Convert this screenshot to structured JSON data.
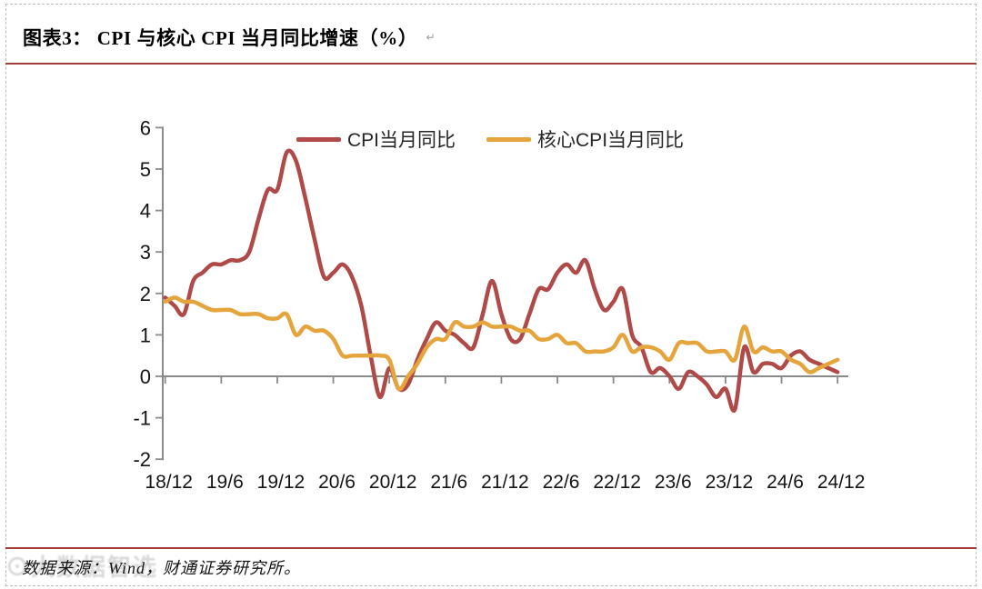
{
  "header": {
    "title": "图表3：  CPI 与核心 CPI 当月同比增速（%）",
    "paragraph_mark": "↵"
  },
  "footer": {
    "source_note": "数据来源：Wind，财通证券研究所。",
    "watermark": "⊙大数据智选"
  },
  "colors": {
    "cpi_line": "#B04A49",
    "core_cpi_line": "#E5A43C",
    "rule_red": "#A43C3A",
    "axis_gray": "#8A8A8A",
    "label_black": "#141414"
  },
  "chart_data": {
    "type": "line",
    "title": "CPI 与核心 CPI 当月同比增速（%）",
    "ylim": [
      -2,
      6
    ],
    "y_ticks": [
      6,
      5,
      4,
      3,
      2,
      1,
      0,
      -1,
      -2
    ],
    "x_tick_labels": [
      "18/12",
      "19/6",
      "19/12",
      "20/6",
      "20/12",
      "21/6",
      "21/12",
      "22/6",
      "22/12",
      "23/6",
      "23/12",
      "24/6",
      "24/12"
    ],
    "grid": "off",
    "legend_position": "top",
    "months": [
      "2018/12",
      "2019/1",
      "2019/2",
      "2019/3",
      "2019/4",
      "2019/5",
      "2019/6",
      "2019/7",
      "2019/8",
      "2019/9",
      "2019/10",
      "2019/11",
      "2019/12",
      "2020/1",
      "2020/2",
      "2020/3",
      "2020/4",
      "2020/5",
      "2020/6",
      "2020/7",
      "2020/8",
      "2020/9",
      "2020/10",
      "2020/11",
      "2020/12",
      "2021/1",
      "2021/2",
      "2021/3",
      "2021/4",
      "2021/5",
      "2021/6",
      "2021/7",
      "2021/8",
      "2021/9",
      "2021/10",
      "2021/11",
      "2021/12",
      "2022/1",
      "2022/2",
      "2022/3",
      "2022/4",
      "2022/5",
      "2022/6",
      "2022/7",
      "2022/8",
      "2022/9",
      "2022/10",
      "2022/11",
      "2022/12",
      "2023/1",
      "2023/2",
      "2023/3",
      "2023/4",
      "2023/5",
      "2023/6",
      "2023/7",
      "2023/8",
      "2023/9",
      "2023/10",
      "2023/11",
      "2023/12",
      "2024/1",
      "2024/2",
      "2024/3",
      "2024/4",
      "2024/5",
      "2024/6",
      "2024/7",
      "2024/8",
      "2024/9",
      "2024/10",
      "2024/11",
      "2024/12"
    ],
    "series": [
      {
        "name": "CPI当月同比",
        "color": "#B04A49",
        "values": [
          1.9,
          1.7,
          1.5,
          2.3,
          2.5,
          2.7,
          2.7,
          2.8,
          2.8,
          3.0,
          3.8,
          4.5,
          4.5,
          5.4,
          5.2,
          4.3,
          3.3,
          2.4,
          2.5,
          2.7,
          2.4,
          1.7,
          0.5,
          -0.5,
          0.2,
          -0.3,
          -0.2,
          0.4,
          0.9,
          1.3,
          1.1,
          1.0,
          0.8,
          0.7,
          1.5,
          2.3,
          1.5,
          0.9,
          0.9,
          1.5,
          2.1,
          2.1,
          2.5,
          2.7,
          2.5,
          2.8,
          2.1,
          1.6,
          1.8,
          2.1,
          1.0,
          0.7,
          0.1,
          0.2,
          0.0,
          -0.3,
          0.1,
          0.0,
          -0.2,
          -0.5,
          -0.3,
          -0.8,
          0.7,
          0.1,
          0.3,
          0.3,
          0.2,
          0.5,
          0.6,
          0.4,
          0.3,
          0.2,
          0.1
        ]
      },
      {
        "name": "核心CPI当月同比",
        "color": "#E5A43C",
        "values": [
          1.8,
          1.9,
          1.8,
          1.8,
          1.7,
          1.6,
          1.6,
          1.6,
          1.5,
          1.5,
          1.5,
          1.4,
          1.4,
          1.5,
          1.0,
          1.2,
          1.1,
          1.1,
          0.9,
          0.5,
          0.5,
          0.5,
          0.5,
          0.5,
          0.4,
          -0.3,
          0.0,
          0.3,
          0.7,
          0.9,
          0.9,
          1.3,
          1.2,
          1.2,
          1.3,
          1.2,
          1.2,
          1.2,
          1.1,
          1.1,
          0.9,
          0.9,
          1.0,
          0.8,
          0.8,
          0.6,
          0.6,
          0.6,
          0.7,
          1.0,
          0.6,
          0.7,
          0.7,
          0.6,
          0.4,
          0.8,
          0.8,
          0.8,
          0.6,
          0.6,
          0.6,
          0.4,
          1.2,
          0.6,
          0.7,
          0.6,
          0.6,
          0.4,
          0.3,
          0.1,
          0.2,
          0.3,
          0.4
        ]
      }
    ]
  }
}
